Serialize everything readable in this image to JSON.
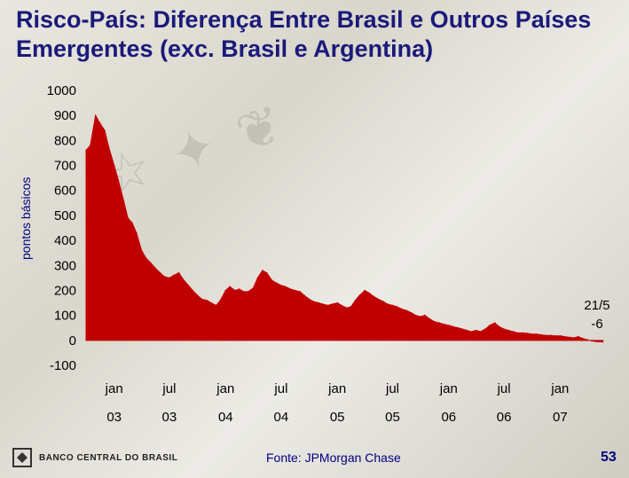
{
  "title": "Risco-País: Diferença Entre Brasil e Outros Países Emergentes (exc. Brasil e Argentina)",
  "footer": {
    "logo_text": "BANCO CENTRAL DO BRASIL",
    "source": "Fonte: JPMorgan Chase",
    "page_number": "53"
  },
  "colors": {
    "series": "#c00000",
    "title": "#1a1a7a"
  },
  "chart_data": {
    "type": "area",
    "title": "",
    "xlabel": "",
    "ylabel": "pontos básicos",
    "ylim": [
      -100,
      1000
    ],
    "y_ticks": [
      -100,
      0,
      100,
      200,
      300,
      400,
      500,
      600,
      700,
      800,
      900,
      1000
    ],
    "x_ticks": [
      {
        "line1": "jan",
        "line2": "03",
        "date": "2003-01"
      },
      {
        "line1": "jul",
        "line2": "03",
        "date": "2003-07"
      },
      {
        "line1": "jan",
        "line2": "04",
        "date": "2004-01"
      },
      {
        "line1": "jul",
        "line2": "04",
        "date": "2004-07"
      },
      {
        "line1": "jan",
        "line2": "05",
        "date": "2005-01"
      },
      {
        "line1": "jul",
        "line2": "05",
        "date": "2005-07"
      },
      {
        "line1": "jan",
        "line2": "06",
        "date": "2006-01"
      },
      {
        "line1": "jul",
        "line2": "06",
        "date": "2006-07"
      },
      {
        "line1": "jan",
        "line2": "07",
        "date": "2007-01"
      }
    ],
    "annotation": {
      "line1": "21/5",
      "line2": "-6"
    },
    "series": [
      {
        "points": [
          [
            "2002-10-01",
            760
          ],
          [
            "2002-10-15",
            780
          ],
          [
            "2002-11-01",
            900
          ],
          [
            "2002-11-15",
            870
          ],
          [
            "2002-12-01",
            840
          ],
          [
            "2002-12-15",
            770
          ],
          [
            "2003-01-01",
            700
          ],
          [
            "2003-01-15",
            640
          ],
          [
            "2003-02-01",
            560
          ],
          [
            "2003-02-15",
            490
          ],
          [
            "2003-03-01",
            470
          ],
          [
            "2003-03-15",
            430
          ],
          [
            "2003-04-01",
            360
          ],
          [
            "2003-04-15",
            330
          ],
          [
            "2003-05-01",
            310
          ],
          [
            "2003-05-15",
            290
          ],
          [
            "2003-06-01",
            270
          ],
          [
            "2003-06-15",
            255
          ],
          [
            "2003-07-01",
            250
          ],
          [
            "2003-07-15",
            260
          ],
          [
            "2003-08-01",
            270
          ],
          [
            "2003-08-15",
            245
          ],
          [
            "2003-09-01",
            220
          ],
          [
            "2003-09-15",
            200
          ],
          [
            "2003-10-01",
            180
          ],
          [
            "2003-10-15",
            165
          ],
          [
            "2003-11-01",
            160
          ],
          [
            "2003-11-15",
            150
          ],
          [
            "2003-12-01",
            140
          ],
          [
            "2003-12-15",
            160
          ],
          [
            "2004-01-01",
            200
          ],
          [
            "2004-01-15",
            215
          ],
          [
            "2004-02-01",
            200
          ],
          [
            "2004-02-15",
            205
          ],
          [
            "2004-03-01",
            195
          ],
          [
            "2004-03-15",
            195
          ],
          [
            "2004-04-01",
            210
          ],
          [
            "2004-04-15",
            250
          ],
          [
            "2004-05-01",
            280
          ],
          [
            "2004-05-15",
            270
          ],
          [
            "2004-06-01",
            240
          ],
          [
            "2004-06-15",
            230
          ],
          [
            "2004-07-01",
            220
          ],
          [
            "2004-07-15",
            215
          ],
          [
            "2004-08-01",
            205
          ],
          [
            "2004-08-15",
            200
          ],
          [
            "2004-09-01",
            195
          ],
          [
            "2004-09-15",
            180
          ],
          [
            "2004-10-01",
            165
          ],
          [
            "2004-10-15",
            155
          ],
          [
            "2004-11-01",
            150
          ],
          [
            "2004-11-15",
            145
          ],
          [
            "2004-12-01",
            140
          ],
          [
            "2004-12-15",
            145
          ],
          [
            "2005-01-01",
            150
          ],
          [
            "2005-01-15",
            140
          ],
          [
            "2005-02-01",
            130
          ],
          [
            "2005-02-15",
            135
          ],
          [
            "2005-03-01",
            160
          ],
          [
            "2005-03-15",
            180
          ],
          [
            "2005-04-01",
            200
          ],
          [
            "2005-04-15",
            190
          ],
          [
            "2005-05-01",
            175
          ],
          [
            "2005-05-15",
            165
          ],
          [
            "2005-06-01",
            155
          ],
          [
            "2005-06-15",
            145
          ],
          [
            "2005-07-01",
            140
          ],
          [
            "2005-07-15",
            135
          ],
          [
            "2005-08-01",
            125
          ],
          [
            "2005-08-15",
            120
          ],
          [
            "2005-09-01",
            110
          ],
          [
            "2005-09-15",
            100
          ],
          [
            "2005-10-01",
            95
          ],
          [
            "2005-10-15",
            100
          ],
          [
            "2005-11-01",
            85
          ],
          [
            "2005-11-15",
            75
          ],
          [
            "2005-12-01",
            70
          ],
          [
            "2005-12-15",
            65
          ],
          [
            "2006-01-01",
            60
          ],
          [
            "2006-01-15",
            55
          ],
          [
            "2006-02-01",
            50
          ],
          [
            "2006-02-15",
            45
          ],
          [
            "2006-03-01",
            40
          ],
          [
            "2006-03-15",
            35
          ],
          [
            "2006-04-01",
            40
          ],
          [
            "2006-04-15",
            35
          ],
          [
            "2006-05-01",
            45
          ],
          [
            "2006-05-15",
            60
          ],
          [
            "2006-06-01",
            70
          ],
          [
            "2006-06-15",
            55
          ],
          [
            "2006-07-01",
            45
          ],
          [
            "2006-07-15",
            40
          ],
          [
            "2006-08-01",
            35
          ],
          [
            "2006-08-15",
            30
          ],
          [
            "2006-09-01",
            30
          ],
          [
            "2006-09-15",
            28
          ],
          [
            "2006-10-01",
            25
          ],
          [
            "2006-10-15",
            25
          ],
          [
            "2006-11-01",
            22
          ],
          [
            "2006-11-15",
            20
          ],
          [
            "2006-12-01",
            20
          ],
          [
            "2006-12-15",
            18
          ],
          [
            "2007-01-01",
            18
          ],
          [
            "2007-01-15",
            15
          ],
          [
            "2007-02-01",
            12
          ],
          [
            "2007-02-15",
            10
          ],
          [
            "2007-03-01",
            15
          ],
          [
            "2007-03-15",
            8
          ],
          [
            "2007-04-01",
            2
          ],
          [
            "2007-04-15",
            -2
          ],
          [
            "2007-05-01",
            -5
          ],
          [
            "2007-05-21",
            -6
          ]
        ]
      }
    ]
  }
}
